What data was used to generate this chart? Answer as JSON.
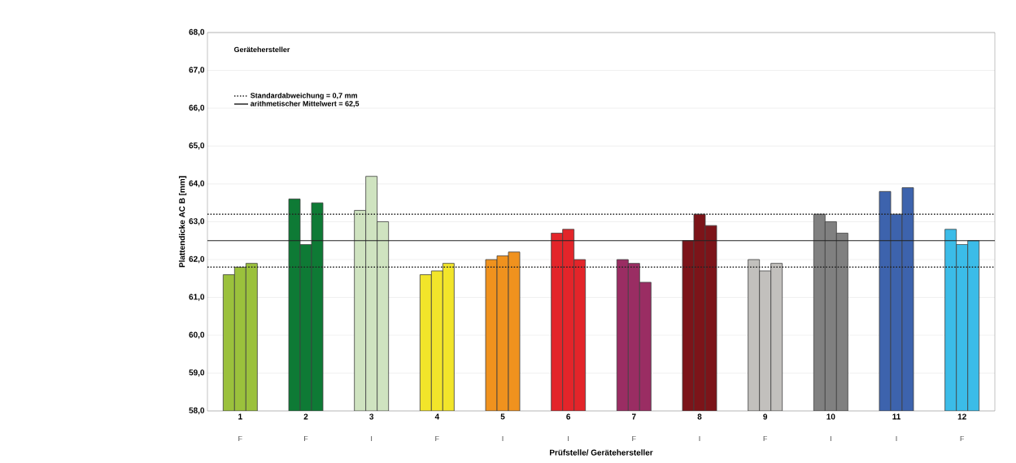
{
  "chart_data": {
    "type": "bar",
    "xlabel": "Prüfstelle/ Gerätehersteller",
    "ylabel": "Plattendicke AC B [mm]",
    "categories": [
      "1",
      "2",
      "3",
      "4",
      "5",
      "6",
      "7",
      "8",
      "9",
      "10",
      "11",
      "12"
    ],
    "series": [
      {
        "colors": [
          "#9bc13c",
          "#0e7a35",
          "#cfe3c0",
          "#f2e52a",
          "#f0921e",
          "#e3252a",
          "#9a2d63",
          "#7c1419",
          "#c2c0bd",
          "#808080",
          "#3d63ad",
          "#3bbce8"
        ],
        "values": [
          61.6,
          63.6,
          63.3,
          61.6,
          62.0,
          62.7,
          62.0,
          62.5,
          62.0,
          63.2,
          63.8,
          62.8
        ]
      },
      {
        "colors": [
          "#9bc13c",
          "#0e7a35",
          "#cfe3c0",
          "#f2e52a",
          "#f0921e",
          "#e3252a",
          "#9a2d63",
          "#7c1419",
          "#c2c0bd",
          "#808080",
          "#3d63ad",
          "#3bbce8"
        ],
        "values": [
          61.8,
          62.4,
          64.2,
          61.7,
          62.1,
          62.8,
          61.9,
          63.2,
          61.7,
          63.0,
          63.2,
          62.4
        ]
      },
      {
        "colors": [
          "#9bc13c",
          "#0e7a35",
          "#cfe3c0",
          "#f2e52a",
          "#f0921e",
          "#e3252a",
          "#9a2d63",
          "#7c1419",
          "#c2c0bd",
          "#808080",
          "#3d63ad",
          "#3bbce8"
        ],
        "values": [
          61.9,
          63.5,
          63.0,
          61.9,
          62.2,
          62.0,
          61.4,
          62.9,
          61.9,
          62.7,
          63.9,
          62.5
        ]
      }
    ],
    "ylim": [
      58,
      68
    ],
    "yticks": [
      {
        "value": 58,
        "label": "58,0"
      },
      {
        "value": 59,
        "label": "59,0"
      },
      {
        "value": 60,
        "label": "60,0"
      },
      {
        "value": 61,
        "label": "61,0"
      },
      {
        "value": 62,
        "label": "62,0"
      },
      {
        "value": 63,
        "label": "63,0"
      },
      {
        "value": 64,
        "label": "64,0"
      },
      {
        "value": 65,
        "label": "65,0"
      },
      {
        "value": 66,
        "label": "66,0"
      },
      {
        "value": 67,
        "label": "67,0"
      },
      {
        "value": 68,
        "label": "68,0"
      }
    ],
    "grid": "y",
    "legend": "top left",
    "ref_lines": [
      {
        "axis": "y",
        "value": 63.2,
        "line_style": "dotted",
        "color": "#222222"
      },
      {
        "axis": "y",
        "value": 61.8,
        "line_style": "dotted",
        "color": "#222222"
      },
      {
        "axis": "y",
        "value": 62.5,
        "label": "arithmetischer Mittelwert = 62,5",
        "line_style": "solid",
        "color": "#222222"
      }
    ],
    "annotations": [
      "Gerätehersteller",
      "Standardabweichung = 0,7 mm",
      "F",
      "F",
      "I",
      "F",
      "I",
      "I",
      "F",
      "I",
      "F",
      "I",
      "I",
      "F"
    ]
  }
}
